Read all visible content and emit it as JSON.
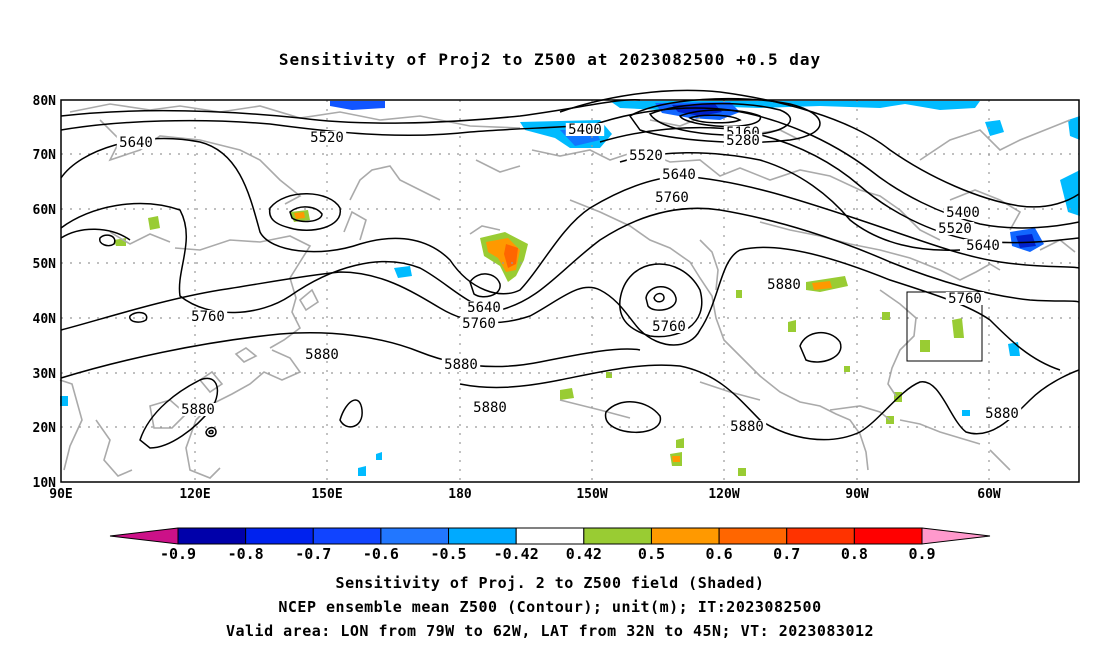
{
  "title": "Sensitivity of Proj2 to Z500 at 2023082500 +0.5 day",
  "captions": [
    "Sensitivity of Proj. 2 to Z500 field (Shaded)",
    "NCEP ensemble mean Z500 (Contour); unit(m); IT:2023082500",
    "Valid area: LON from 79W to 62W, LAT from 32N to 45N; VT: 2023083012"
  ],
  "map": {
    "lat_labels": [
      "80N",
      "70N",
      "60N",
      "50N",
      "40N",
      "30N",
      "20N",
      "10N"
    ],
    "lon_labels": [
      "90E",
      "120E",
      "150E",
      "180",
      "150W",
      "120W",
      "90W",
      "60W"
    ],
    "grid": true
  },
  "contour_labels": [
    {
      "text": "5640"
    },
    {
      "text": "5520"
    },
    {
      "text": "5400"
    },
    {
      "text": "5160"
    },
    {
      "text": "5280"
    },
    {
      "text": "5520"
    },
    {
      "text": "5640"
    },
    {
      "text": "5760"
    },
    {
      "text": "5400"
    },
    {
      "text": "5520"
    },
    {
      "text": "5640"
    },
    {
      "text": "5880"
    },
    {
      "text": "5760"
    },
    {
      "text": "5760"
    },
    {
      "text": "5640"
    },
    {
      "text": "5760"
    },
    {
      "text": "5760"
    },
    {
      "text": "5880"
    },
    {
      "text": "5880"
    },
    {
      "text": "5880"
    },
    {
      "text": "5880"
    },
    {
      "text": "5880"
    },
    {
      "text": "5880"
    }
  ],
  "colorbar": {
    "labels": [
      "-0.9",
      "-0.8",
      "-0.7",
      "-0.6",
      "-0.5",
      "-0.42",
      "0.42",
      "0.5",
      "0.6",
      "0.7",
      "0.8",
      "0.9"
    ],
    "colors": [
      "#0000aa",
      "#0022ee",
      "#1144ff",
      "#2277ff",
      "#00aaff",
      "#ffffff",
      "#99cc33",
      "#ff9900",
      "#ff6600",
      "#ff3300",
      "#ff0000"
    ],
    "low_extend_color": "#cc1188",
    "high_extend_color": "#ff99cc"
  }
}
